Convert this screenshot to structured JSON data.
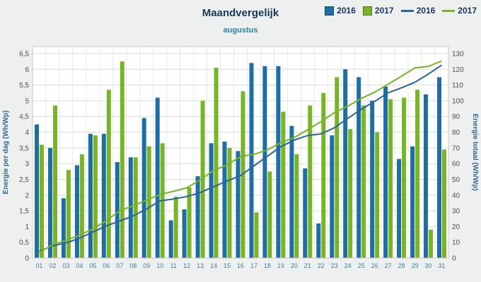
{
  "header": {
    "title": "Maandvergelijk",
    "subtitle": "augustus"
  },
  "legend": [
    {
      "label": "2016",
      "type": "bar",
      "color": "#1c6ea4"
    },
    {
      "label": "2017",
      "type": "bar",
      "color": "#77b527"
    },
    {
      "label": "2016",
      "type": "line",
      "color": "#2a6496"
    },
    {
      "label": "2017",
      "type": "line",
      "color": "#77b527"
    }
  ],
  "chart_data": {
    "type": "bar",
    "title": "Maandvergelijk",
    "subtitle": "augustus",
    "categories": [
      "01",
      "02",
      "03",
      "04",
      "05",
      "06",
      "07",
      "08",
      "09",
      "10",
      "11",
      "12",
      "13",
      "14",
      "15",
      "16",
      "17",
      "18",
      "19",
      "20",
      "21",
      "22",
      "23",
      "24",
      "25",
      "26",
      "27",
      "28",
      "29",
      "30",
      "31"
    ],
    "bar_series": [
      {
        "name": "2016",
        "color": "#1c6ea4",
        "values": [
          4.25,
          3.5,
          1.9,
          2.95,
          3.95,
          3.95,
          3.05,
          3.2,
          4.45,
          5.1,
          1.2,
          1.55,
          2.6,
          3.65,
          3.7,
          3.4,
          6.2,
          6.1,
          6.1,
          4.2,
          2.85,
          1.1,
          3.9,
          6.0,
          5.75,
          5.0,
          5.45,
          3.15,
          3.55,
          5.2,
          5.75
        ]
      },
      {
        "name": "2017",
        "color": "#77b527",
        "values": [
          3.6,
          4.85,
          2.8,
          3.3,
          3.9,
          5.35,
          6.25,
          3.2,
          3.55,
          3.65,
          1.95,
          2.25,
          5.0,
          6.05,
          3.5,
          5.3,
          1.45,
          2.75,
          4.65,
          3.3,
          4.85,
          5.25,
          5.75,
          4.1,
          4.85,
          4.0,
          5.05,
          5.1,
          5.35,
          0.9,
          3.45
        ]
      }
    ],
    "line_series": [
      {
        "name": "2016",
        "color": "#2a6496",
        "axis": "right",
        "values": [
          4.25,
          7.75,
          9.65,
          12.6,
          16.55,
          20.5,
          23.55,
          26.75,
          31.2,
          36.3,
          37.5,
          39.05,
          41.65,
          45.3,
          49.0,
          52.4,
          58.6,
          64.7,
          70.8,
          75.0,
          77.85,
          78.95,
          82.85,
          88.85,
          94.6,
          99.6,
          105.05,
          108.2,
          111.75,
          116.95,
          122.7
        ]
      },
      {
        "name": "2017",
        "color": "#77b527",
        "axis": "right",
        "values": [
          3.6,
          8.45,
          11.25,
          14.55,
          18.45,
          23.8,
          30.05,
          33.25,
          36.8,
          40.45,
          42.4,
          44.65,
          49.65,
          55.7,
          59.2,
          64.5,
          65.95,
          68.7,
          73.35,
          76.65,
          81.5,
          86.75,
          92.5,
          96.6,
          101.45,
          105.45,
          110.5,
          115.6,
          120.95,
          121.85,
          125.3
        ]
      }
    ],
    "y_left": {
      "label": "Energie per dag (Wh/Wp)",
      "min": 0,
      "max": 6.5,
      "ticks": [
        "0",
        "0,5",
        "1",
        "1,5",
        "2",
        "2,5",
        "3",
        "3,5",
        "4",
        "4,5",
        "5",
        "5,5",
        "6",
        "6,5"
      ]
    },
    "y_right": {
      "label": "Energie totaal (Wh/Wp)",
      "min": 0,
      "max": 130,
      "ticks": [
        "0",
        "10",
        "20",
        "30",
        "40",
        "50",
        "60",
        "70",
        "80",
        "90",
        "100",
        "110",
        "120",
        "130"
      ]
    },
    "grid": true,
    "legend_position": "top-right",
    "axis_title_color": "#336699",
    "x_label_color": "#3f7fa0",
    "y_tick_color": "#4d4d4d"
  }
}
